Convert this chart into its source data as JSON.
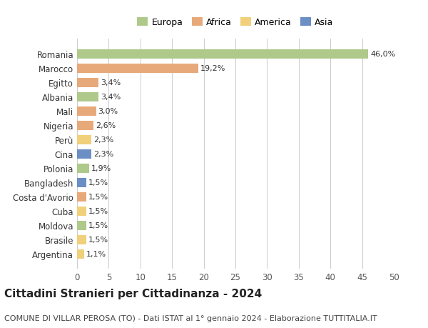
{
  "countries": [
    "Romania",
    "Marocco",
    "Egitto",
    "Albania",
    "Mali",
    "Nigeria",
    "Perù",
    "Cina",
    "Polonia",
    "Bangladesh",
    "Costa d'Avorio",
    "Cuba",
    "Moldova",
    "Brasile",
    "Argentina"
  ],
  "values": [
    46.0,
    19.2,
    3.4,
    3.4,
    3.0,
    2.6,
    2.3,
    2.3,
    1.9,
    1.5,
    1.5,
    1.5,
    1.5,
    1.5,
    1.1
  ],
  "labels": [
    "46,0%",
    "19,2%",
    "3,4%",
    "3,4%",
    "3,0%",
    "2,6%",
    "2,3%",
    "2,3%",
    "1,9%",
    "1,5%",
    "1,5%",
    "1,5%",
    "1,5%",
    "1,5%",
    "1,1%"
  ],
  "continents": [
    "Europa",
    "Africa",
    "Africa",
    "Europa",
    "Africa",
    "Africa",
    "America",
    "Asia",
    "Europa",
    "Asia",
    "Africa",
    "America",
    "Europa",
    "America",
    "America"
  ],
  "continent_colors": {
    "Europa": "#aec98a",
    "Africa": "#e8a97a",
    "America": "#f0d07a",
    "Asia": "#6b8ec4"
  },
  "legend_order": [
    "Europa",
    "Africa",
    "America",
    "Asia"
  ],
  "title": "Cittadini Stranieri per Cittadinanza - 2024",
  "subtitle": "COMUNE DI VILLAR PEROSA (TO) - Dati ISTAT al 1° gennaio 2024 - Elaborazione TUTTITALIA.IT",
  "xlim": [
    0,
    50
  ],
  "xticks": [
    0,
    5,
    10,
    15,
    20,
    25,
    30,
    35,
    40,
    45,
    50
  ],
  "background_color": "#ffffff",
  "grid_color": "#cccccc",
  "bar_height": 0.65,
  "title_fontsize": 11,
  "subtitle_fontsize": 8,
  "tick_fontsize": 8.5,
  "label_fontsize": 8,
  "legend_fontsize": 9
}
